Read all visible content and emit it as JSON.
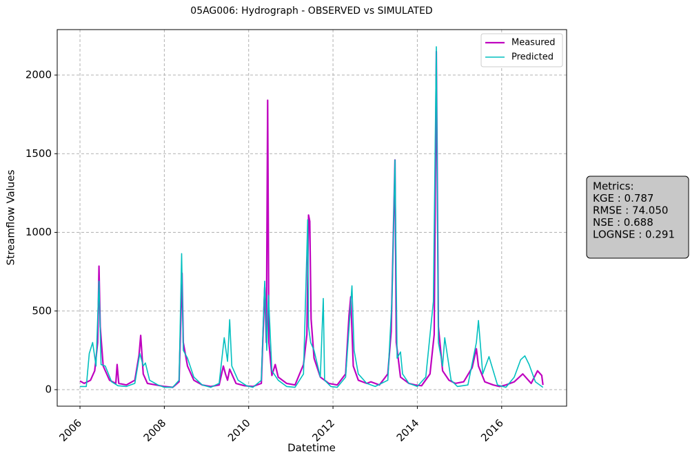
{
  "chart_data": {
    "type": "line",
    "title": "05AG006: Hydrograph - OBSERVED vs SIMULATED",
    "xlabel": "Datetime",
    "ylabel": "Streamflow Values",
    "xlim": [
      2005.46,
      2017.54
    ],
    "xticks": [
      2006,
      2008,
      2010,
      2012,
      2014,
      2016
    ],
    "ylim": [
      -105,
      2289
    ],
    "yticks": [
      0,
      500,
      1000,
      1500,
      2000
    ],
    "grid": true,
    "legend": "upper right",
    "annotations": [
      "Metrics:",
      "KGE : 0.787",
      "RMSE : 74.050",
      "NSE : 0.688",
      "LOGNSE : 0.291"
    ],
    "series": [
      {
        "name": "Measured",
        "color": "#bf00bf",
        "x": [
          2006.0,
          2006.1,
          2006.25,
          2006.35,
          2006.42,
          2006.45,
          2006.48,
          2006.55,
          2006.7,
          2006.85,
          2006.88,
          2006.92,
          2007.1,
          2007.3,
          2007.4,
          2007.44,
          2007.5,
          2007.6,
          2007.8,
          2008.0,
          2008.2,
          2008.35,
          2008.42,
          2008.45,
          2008.55,
          2008.7,
          2008.9,
          2009.1,
          2009.3,
          2009.4,
          2009.45,
          2009.5,
          2009.55,
          2009.7,
          2009.9,
          2010.1,
          2010.3,
          2010.38,
          2010.42,
          2010.45,
          2010.48,
          2010.55,
          2010.63,
          2010.7,
          2010.9,
          2011.1,
          2011.3,
          2011.38,
          2011.42,
          2011.45,
          2011.48,
          2011.55,
          2011.7,
          2011.9,
          2012.1,
          2012.3,
          2012.38,
          2012.42,
          2012.48,
          2012.6,
          2012.8,
          2012.9,
          2013.1,
          2013.3,
          2013.38,
          2013.47,
          2013.5,
          2013.6,
          2013.8,
          2013.95,
          2014.1,
          2014.3,
          2014.4,
          2014.45,
          2014.5,
          2014.6,
          2014.75,
          2014.9,
          2015.1,
          2015.3,
          2015.4,
          2015.45,
          2015.6,
          2015.8,
          2015.95,
          2016.1,
          2016.3,
          2016.5,
          2016.7,
          2016.85,
          2016.95,
          2016.98
        ],
        "values": [
          55,
          40,
          60,
          120,
          300,
          785,
          400,
          150,
          60,
          40,
          160,
          40,
          30,
          60,
          220,
          345,
          100,
          40,
          30,
          20,
          15,
          50,
          740,
          300,
          150,
          60,
          30,
          20,
          30,
          150,
          100,
          60,
          130,
          40,
          25,
          20,
          40,
          650,
          300,
          1840,
          300,
          90,
          160,
          80,
          40,
          30,
          160,
          350,
          1110,
          1070,
          450,
          200,
          80,
          40,
          30,
          100,
          470,
          590,
          150,
          60,
          40,
          50,
          30,
          100,
          370,
          1460,
          300,
          80,
          40,
          30,
          25,
          100,
          350,
          2150,
          400,
          120,
          60,
          40,
          50,
          140,
          260,
          150,
          50,
          30,
          20,
          30,
          50,
          100,
          40,
          120,
          90,
          30
        ]
      },
      {
        "name": "Predicted",
        "color": "#00bfbf",
        "x": [
          2006.0,
          2006.15,
          2006.22,
          2006.3,
          2006.38,
          2006.45,
          2006.5,
          2006.6,
          2006.75,
          2006.9,
          2007.1,
          2007.3,
          2007.42,
          2007.5,
          2007.55,
          2007.65,
          2007.85,
          2008.0,
          2008.2,
          2008.35,
          2008.41,
          2008.45,
          2008.55,
          2008.7,
          2008.9,
          2009.1,
          2009.3,
          2009.42,
          2009.5,
          2009.55,
          2009.6,
          2009.75,
          2009.95,
          2010.1,
          2010.3,
          2010.38,
          2010.43,
          2010.47,
          2010.55,
          2010.7,
          2010.9,
          2011.1,
          2011.3,
          2011.4,
          2011.42,
          2011.47,
          2011.55,
          2011.7,
          2011.77,
          2011.8,
          2011.95,
          2012.1,
          2012.3,
          2012.4,
          2012.45,
          2012.5,
          2012.6,
          2012.8,
          2013.0,
          2013.3,
          2013.4,
          2013.47,
          2013.52,
          2013.6,
          2013.65,
          2013.8,
          2014.0,
          2014.2,
          2014.38,
          2014.45,
          2014.5,
          2014.6,
          2014.65,
          2014.8,
          2014.95,
          2015.2,
          2015.4,
          2015.45,
          2015.55,
          2015.7,
          2015.9,
          2016.1,
          2016.3,
          2016.45,
          2016.55,
          2016.65,
          2016.8,
          2016.98
        ],
        "values": [
          20,
          20,
          230,
          300,
          150,
          690,
          160,
          150,
          50,
          25,
          20,
          40,
          230,
          150,
          170,
          60,
          30,
          15,
          15,
          60,
          865,
          250,
          200,
          80,
          30,
          15,
          40,
          330,
          180,
          445,
          150,
          60,
          25,
          15,
          60,
          690,
          250,
          600,
          120,
          60,
          20,
          15,
          100,
          1080,
          400,
          300,
          250,
          80,
          580,
          60,
          20,
          15,
          80,
          470,
          660,
          250,
          100,
          40,
          20,
          60,
          580,
          1460,
          200,
          240,
          100,
          40,
          20,
          80,
          560,
          2180,
          300,
          150,
          330,
          60,
          20,
          30,
          300,
          440,
          100,
          210,
          30,
          15,
          80,
          190,
          215,
          160,
          50,
          15
        ]
      }
    ]
  }
}
